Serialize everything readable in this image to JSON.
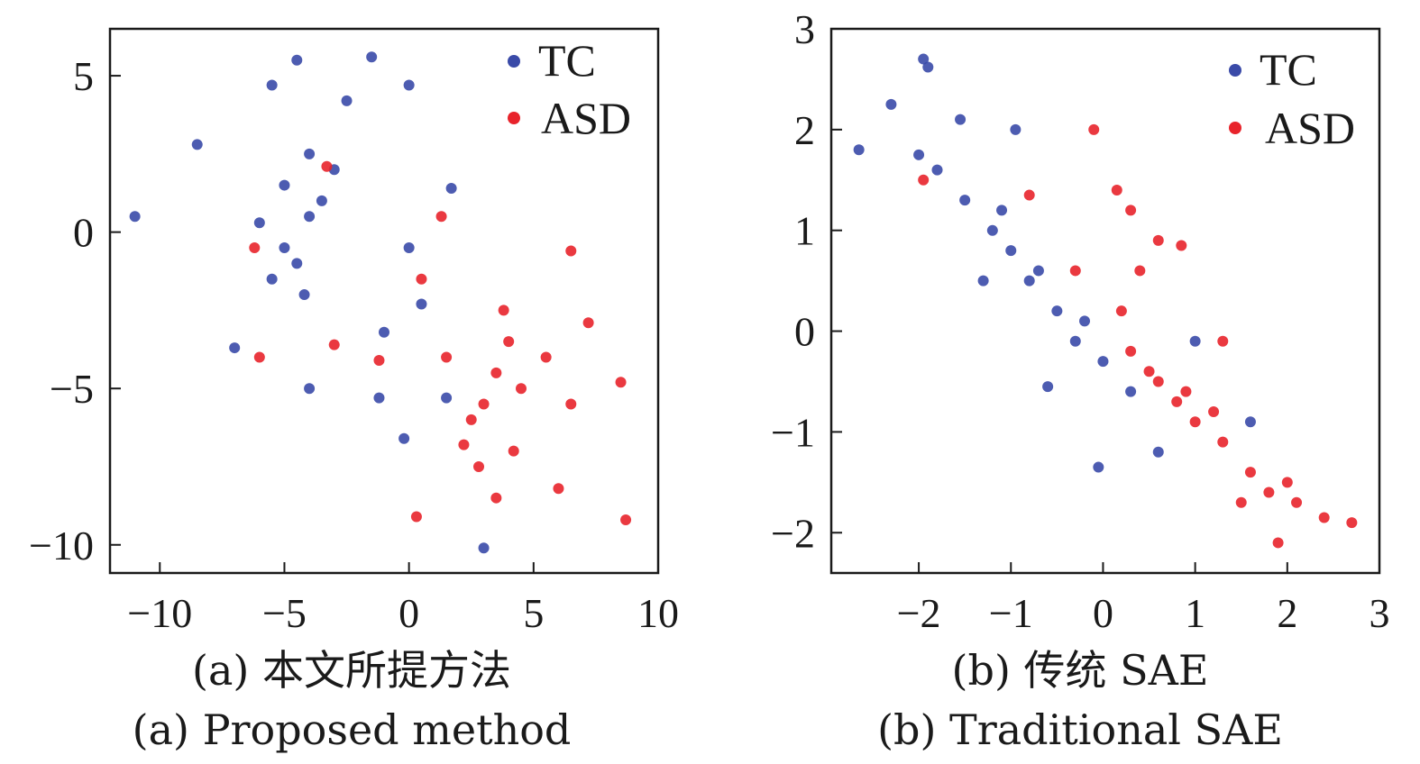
{
  "colors": {
    "TC": "#3a4aa8",
    "ASD": "#e8232b"
  },
  "chart_data": [
    {
      "type": "scatter",
      "title": "",
      "xlabel": "",
      "ylabel": "",
      "xlim": [
        -12,
        10
      ],
      "ylim": [
        -10.9,
        6.5
      ],
      "xticks": [
        -10,
        -5,
        0,
        5,
        10
      ],
      "yticks": [
        5,
        0,
        -5,
        -10
      ],
      "legend_position": "top-right",
      "captions": [
        "(a) 本文所提方法",
        "(a) Proposed method"
      ],
      "series": [
        {
          "name": "TC",
          "values": [
            [
              -5,
              -0.5
            ],
            [
              -4,
              0.5
            ],
            [
              -3.5,
              1.0
            ],
            [
              -4.5,
              -1.0
            ],
            [
              -5.5,
              -1.5
            ],
            [
              -3.0,
              2.0
            ],
            [
              -6,
              0.3
            ],
            [
              -4,
              2.5
            ],
            [
              -5,
              1.5
            ],
            [
              -4.2,
              -2.0
            ],
            [
              -11,
              0.5
            ],
            [
              -1.5,
              5.6
            ],
            [
              -5.5,
              4.7
            ],
            [
              -4.5,
              5.5
            ],
            [
              -2.5,
              4.2
            ],
            [
              0,
              4.7
            ],
            [
              1.7,
              1.4
            ],
            [
              0,
              -0.5
            ],
            [
              -1.2,
              -5.3
            ],
            [
              3,
              -10.1
            ],
            [
              -0.2,
              -6.6
            ],
            [
              -4,
              -5
            ],
            [
              1.5,
              -5.3
            ],
            [
              -8.5,
              2.8
            ],
            [
              -7,
              -3.7
            ],
            [
              -1,
              -3.2
            ],
            [
              0.5,
              -2.3
            ]
          ]
        },
        {
          "name": "ASD",
          "values": [
            [
              3.5,
              -4.5
            ],
            [
              2.5,
              -6.0
            ],
            [
              4,
              -3.5
            ],
            [
              3,
              -5.5
            ],
            [
              2.2,
              -6.8
            ],
            [
              4.5,
              -5.0
            ],
            [
              3.8,
              -2.5
            ],
            [
              5.5,
              -4.0
            ],
            [
              2.8,
              -7.5
            ],
            [
              1.5,
              -4.0
            ],
            [
              6.5,
              -5.5
            ],
            [
              4.2,
              -7.0
            ],
            [
              8.7,
              -9.2
            ],
            [
              8.5,
              -4.8
            ],
            [
              0.3,
              -9.1
            ],
            [
              1.3,
              0.5
            ],
            [
              -3.3,
              2.1
            ],
            [
              -6.0,
              -4.0
            ],
            [
              -3.0,
              -3.6
            ],
            [
              -1.2,
              -4.1
            ],
            [
              7.2,
              -2.9
            ],
            [
              6.5,
              -0.6
            ],
            [
              -6.2,
              -0.5
            ],
            [
              6,
              -8.2
            ],
            [
              3.5,
              -8.5
            ],
            [
              0.5,
              -1.5
            ]
          ]
        }
      ]
    },
    {
      "type": "scatter",
      "title": "",
      "xlabel": "",
      "ylabel": "",
      "xlim": [
        -2.95,
        3
      ],
      "ylim": [
        -2.4,
        3
      ],
      "xticks": [
        -2,
        -1,
        0,
        1,
        2,
        3
      ],
      "yticks": [
        3,
        2,
        1,
        0,
        -1,
        -2
      ],
      "legend_position": "top-right",
      "captions": [
        "(b) 传统 SAE",
        "(b) Traditional SAE"
      ],
      "series": [
        {
          "name": "TC",
          "values": [
            [
              -1.2,
              1.0
            ],
            [
              -1.0,
              0.8
            ],
            [
              -0.8,
              0.5
            ],
            [
              -0.5,
              0.2
            ],
            [
              -1.5,
              1.3
            ],
            [
              -0.3,
              -0.1
            ],
            [
              0,
              -0.3
            ],
            [
              0.3,
              -0.6
            ],
            [
              -1.8,
              1.6
            ],
            [
              -1.1,
              1.2
            ],
            [
              -0.7,
              0.6
            ],
            [
              -0.2,
              0.1
            ],
            [
              -2.65,
              1.8
            ],
            [
              -2.3,
              2.25
            ],
            [
              -1.95,
              2.7
            ],
            [
              -1.9,
              2.62
            ],
            [
              -1.55,
              2.1
            ],
            [
              -0.95,
              2.0
            ],
            [
              -0.05,
              -1.35
            ],
            [
              1.6,
              -0.9
            ],
            [
              0.6,
              -1.2
            ],
            [
              1.0,
              -0.1
            ],
            [
              -2.0,
              1.75
            ],
            [
              -1.3,
              0.5
            ],
            [
              -0.6,
              -0.55
            ]
          ]
        },
        {
          "name": "ASD",
          "values": [
            [
              0.5,
              -0.4
            ],
            [
              0.8,
              -0.7
            ],
            [
              1.0,
              -0.9
            ],
            [
              0.3,
              -0.2
            ],
            [
              1.3,
              -1.1
            ],
            [
              0.6,
              -0.5
            ],
            [
              1.6,
              -1.4
            ],
            [
              0.2,
              0.2
            ],
            [
              0.9,
              -0.6
            ],
            [
              1.2,
              -0.8
            ],
            [
              1.8,
              -1.6
            ],
            [
              2.7,
              -1.9
            ],
            [
              2.4,
              -1.85
            ],
            [
              1.9,
              -2.1
            ],
            [
              2.1,
              -1.7
            ],
            [
              -0.1,
              2.0
            ],
            [
              0.15,
              1.4
            ],
            [
              0.85,
              0.85
            ],
            [
              0.3,
              1.2
            ],
            [
              -0.8,
              1.35
            ],
            [
              -1.95,
              1.5
            ],
            [
              0.6,
              0.9
            ],
            [
              -0.3,
              0.6
            ],
            [
              1.3,
              -0.1
            ],
            [
              2.0,
              -1.5
            ],
            [
              0.4,
              0.6
            ],
            [
              1.5,
              -1.7
            ]
          ]
        }
      ]
    }
  ]
}
